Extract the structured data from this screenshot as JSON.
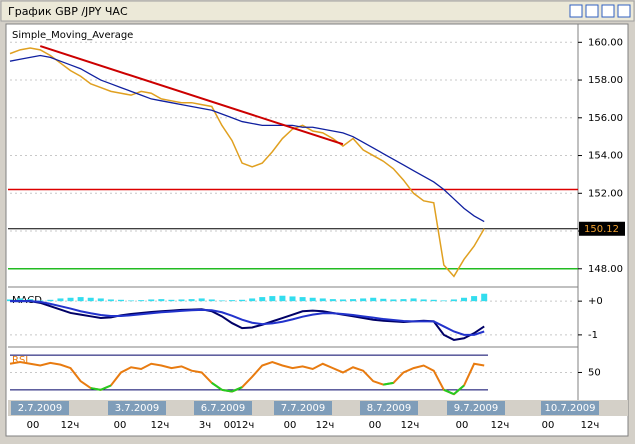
{
  "window": {
    "title": "График GBP /JPY  ЧАС"
  },
  "chart_data": [
    {
      "type": "price",
      "label": "Simple_Moving_Average",
      "xlim": [
        0,
        56
      ],
      "ylim": [
        147.14,
        160.97
      ],
      "yticks": [
        {
          "value": 148,
          "label": "148.00"
        },
        {
          "value": 150,
          "label": "150.00"
        },
        {
          "value": 152,
          "label": "152.00"
        },
        {
          "value": 154,
          "label": "154.00"
        },
        {
          "value": 156,
          "label": "156.00"
        },
        {
          "value": 158,
          "label": "158.00"
        },
        {
          "value": 160,
          "label": "160.00"
        }
      ],
      "grid": true,
      "series": [
        {
          "color": "#e0a020",
          "values": [
            159.4,
            159.6,
            159.7,
            159.6,
            159.3,
            158.9,
            158.5,
            158.2,
            157.8,
            157.6,
            157.4,
            157.3,
            157.2,
            157.4,
            157.3,
            157.0,
            156.9,
            156.8,
            156.8,
            156.7,
            156.6,
            155.6,
            154.8,
            153.6,
            153.4,
            153.6,
            154.2,
            154.9,
            155.4,
            155.6,
            155.3,
            155.2,
            154.9,
            154.5,
            154.9,
            154.3,
            154.0,
            153.7,
            153.3,
            152.7,
            152.0,
            151.6,
            151.5,
            148.2,
            147.6,
            148.5,
            149.2,
            150.12
          ]
        },
        {
          "color": "#1020a0",
          "values": [
            159.0,
            159.1,
            159.2,
            159.3,
            159.2,
            159.0,
            158.8,
            158.6,
            158.3,
            158.0,
            157.8,
            157.6,
            157.4,
            157.2,
            157.0,
            156.9,
            156.8,
            156.7,
            156.6,
            156.5,
            156.4,
            156.2,
            156.0,
            155.8,
            155.7,
            155.6,
            155.6,
            155.6,
            155.6,
            155.5,
            155.5,
            155.4,
            155.3,
            155.2,
            155.0,
            154.7,
            154.4,
            154.1,
            153.8,
            153.5,
            153.2,
            152.9,
            152.6,
            152.2,
            151.7,
            151.2,
            150.8,
            150.5
          ]
        }
      ],
      "trend_line": {
        "color": "#cc0000",
        "x": [
          3,
          33
        ],
        "y": [
          159.8,
          154.6
        ]
      },
      "levels": [
        {
          "value": 152.2,
          "color": "#dd0000"
        },
        {
          "value": 148,
          "color": "#22bb22"
        }
      ],
      "last_price": 150.12
    },
    {
      "type": "macd",
      "label": "MACD",
      "xlim": [
        0,
        56
      ],
      "ylim": [
        -1.3,
        0.36
      ],
      "yticks": [
        {
          "value": 0,
          "label": "+0"
        },
        -1
      ],
      "hist": {
        "color": "#33ddee",
        "values": [
          0.05,
          0.08,
          0.06,
          0.02,
          0.04,
          0.08,
          0.1,
          0.12,
          0.1,
          0.08,
          0.05,
          0.04,
          0.02,
          0.03,
          0.05,
          0.06,
          0.04,
          0.05,
          0.06,
          0.08,
          0.05,
          0.02,
          0.03,
          0.04,
          0.08,
          0.12,
          0.15,
          0.16,
          0.14,
          0.12,
          0.1,
          0.08,
          0.06,
          0.05,
          0.06,
          0.08,
          0.1,
          0.07,
          0.05,
          0.06,
          0.08,
          0.05,
          0.04,
          0.02,
          0.05,
          0.1,
          0.15,
          0.22
        ]
      },
      "series": [
        {
          "color": "#000066",
          "values": [
            0,
            0,
            0,
            -0.05,
            -0.15,
            -0.25,
            -0.35,
            -0.4,
            -0.45,
            -0.5,
            -0.48,
            -0.42,
            -0.38,
            -0.35,
            -0.32,
            -0.3,
            -0.28,
            -0.26,
            -0.25,
            -0.24,
            -0.3,
            -0.45,
            -0.65,
            -0.8,
            -0.78,
            -0.7,
            -0.6,
            -0.5,
            -0.4,
            -0.3,
            -0.28,
            -0.3,
            -0.35,
            -0.4,
            -0.45,
            -0.5,
            -0.55,
            -0.58,
            -0.6,
            -0.62,
            -0.6,
            -0.58,
            -0.6,
            -1.0,
            -1.15,
            -1.1,
            -0.95,
            -0.75
          ]
        },
        {
          "color": "#2233cc",
          "values": [
            0,
            0,
            0,
            -0.02,
            -0.08,
            -0.15,
            -0.22,
            -0.3,
            -0.36,
            -0.41,
            -0.44,
            -0.44,
            -0.42,
            -0.39,
            -0.36,
            -0.33,
            -0.31,
            -0.29,
            -0.27,
            -0.26,
            -0.27,
            -0.33,
            -0.43,
            -0.55,
            -0.64,
            -0.68,
            -0.66,
            -0.61,
            -0.54,
            -0.46,
            -0.4,
            -0.36,
            -0.36,
            -0.38,
            -0.41,
            -0.45,
            -0.49,
            -0.53,
            -0.56,
            -0.59,
            -0.6,
            -0.6,
            -0.6,
            -0.75,
            -0.9,
            -1.0,
            -1.0,
            -0.9
          ]
        }
      ]
    },
    {
      "type": "rsi",
      "label": "RSI",
      "xlim": [
        0,
        56
      ],
      "ylim": [
        20.6,
        77
      ],
      "yticks": [
        50
      ],
      "levels": [
        70,
        30
      ],
      "series": [
        {
          "color": "#e87b10",
          "low_color": "#22cc22",
          "values": [
            60,
            62,
            60,
            58,
            61,
            59,
            55,
            40,
            32,
            30,
            35,
            50,
            56,
            54,
            60,
            58,
            55,
            57,
            52,
            50,
            38,
            30,
            28,
            33,
            45,
            58,
            62,
            58,
            55,
            57,
            54,
            60,
            55,
            50,
            56,
            52,
            40,
            36,
            38,
            50,
            55,
            58,
            52,
            30,
            25,
            35,
            60,
            58
          ]
        }
      ]
    }
  ],
  "x_axis": {
    "dates": [
      "2.7.2009",
      "3.7.2009",
      "6.7.2009",
      "7.7.2009",
      "8.7.2009",
      "9.7.2009",
      "10.7.2009"
    ],
    "times": [
      "00",
      "12ч",
      "00",
      "12ч",
      "3ч",
      "00",
      "12ч",
      "00",
      "12ч",
      "00",
      "12ч",
      "00",
      "12ч",
      "00",
      "12ч"
    ]
  }
}
